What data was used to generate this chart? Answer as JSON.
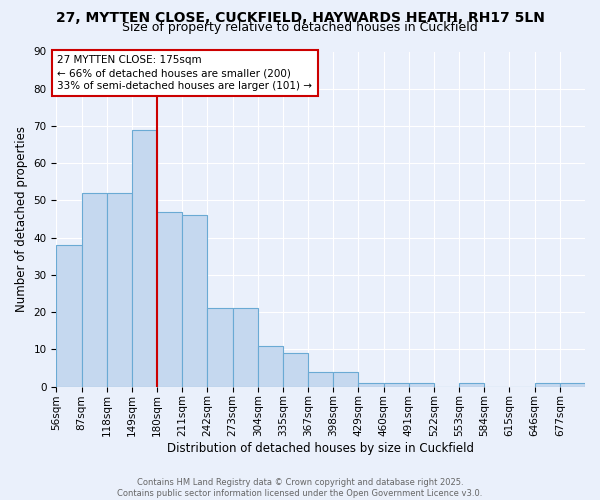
{
  "title1": "27, MYTTEN CLOSE, CUCKFIELD, HAYWARDS HEATH, RH17 5LN",
  "title2": "Size of property relative to detached houses in Cuckfield",
  "xlabel": "Distribution of detached houses by size in Cuckfield",
  "ylabel": "Number of detached properties",
  "bin_labels": [
    "56sqm",
    "87sqm",
    "118sqm",
    "149sqm",
    "180sqm",
    "211sqm",
    "242sqm",
    "273sqm",
    "304sqm",
    "335sqm",
    "367sqm",
    "398sqm",
    "429sqm",
    "460sqm",
    "491sqm",
    "522sqm",
    "553sqm",
    "584sqm",
    "615sqm",
    "646sqm",
    "677sqm"
  ],
  "counts": [
    38,
    52,
    52,
    69,
    47,
    46,
    21,
    21,
    11,
    9,
    4,
    4,
    1,
    1,
    1,
    0,
    1,
    0,
    0,
    1,
    1
  ],
  "bar_color": "#c5d8ef",
  "bar_edge_color": "#6aaad4",
  "property_line_index": 4,
  "property_line_color": "#cc0000",
  "annotation_text": "27 MYTTEN CLOSE: 175sqm\n← 66% of detached houses are smaller (200)\n33% of semi-detached houses are larger (101) →",
  "annotation_box_color": "#cc0000",
  "ylim": [
    0,
    90
  ],
  "yticks": [
    0,
    10,
    20,
    30,
    40,
    50,
    60,
    70,
    80,
    90
  ],
  "footer1": "Contains HM Land Registry data © Crown copyright and database right 2025.",
  "footer2": "Contains public sector information licensed under the Open Government Licence v3.0.",
  "bg_color": "#eaf0fb",
  "grid_color": "#ffffff",
  "title_fontsize": 10,
  "subtitle_fontsize": 9,
  "tick_fontsize": 7.5,
  "label_fontsize": 8.5
}
